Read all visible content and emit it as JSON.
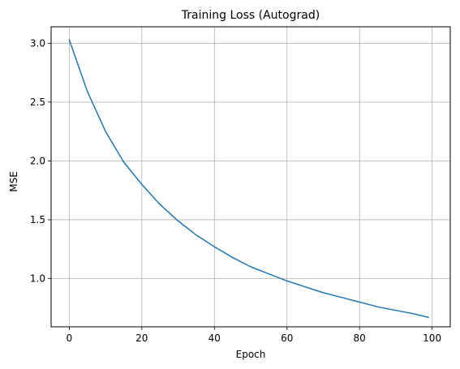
{
  "chart_data": {
    "type": "line",
    "title": "Training Loss (Autograd)",
    "xlabel": "Epoch",
    "ylabel": "MSE",
    "xlim": [
      -5,
      105
    ],
    "ylim": [
      0.59,
      3.14
    ],
    "xticks": [
      0,
      20,
      40,
      60,
      80,
      100
    ],
    "yticks": [
      1.0,
      1.5,
      2.0,
      2.5,
      3.0
    ],
    "xtick_labels": [
      "0",
      "20",
      "40",
      "60",
      "80",
      "100"
    ],
    "ytick_labels": [
      "1.0",
      "1.5",
      "2.0",
      "2.5",
      "3.0"
    ],
    "grid": true,
    "series": [
      {
        "color": "#1f77b4",
        "x": [
          0,
          5,
          10,
          15,
          20,
          25,
          30,
          35,
          40,
          45,
          50,
          55,
          60,
          65,
          70,
          75,
          80,
          85,
          90,
          95,
          99
        ],
        "y": [
          3.03,
          2.59,
          2.25,
          1.99,
          1.8,
          1.63,
          1.49,
          1.37,
          1.27,
          1.18,
          1.1,
          1.04,
          0.98,
          0.93,
          0.88,
          0.84,
          0.8,
          0.76,
          0.73,
          0.7,
          0.67
        ]
      }
    ]
  }
}
